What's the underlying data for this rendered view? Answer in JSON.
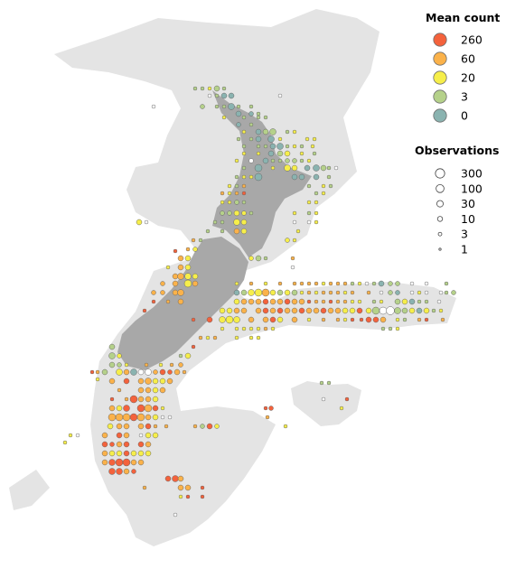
{
  "legend": {
    "mean_count": {
      "title": "Mean count",
      "items": [
        {
          "label": "260",
          "color": "#f4623c"
        },
        {
          "label": "60",
          "color": "#fbb24a"
        },
        {
          "label": "20",
          "color": "#f6ee4a"
        },
        {
          "label": "3",
          "color": "#b5d18a"
        },
        {
          "label": "0",
          "color": "#8ab3b0"
        }
      ]
    },
    "observations": {
      "title": "Observations",
      "items": [
        {
          "label": "300",
          "size": 300
        },
        {
          "label": "100",
          "size": 100
        },
        {
          "label": "30",
          "size": 30
        },
        {
          "label": "10",
          "size": 10
        },
        {
          "label": "3",
          "size": 3
        },
        {
          "label": "1",
          "size": 1
        }
      ]
    }
  },
  "colors": {
    "land": "#e4e4e4",
    "bathymetry": "#a8a8a8",
    "empty_marker": "#ffffff"
  }
}
